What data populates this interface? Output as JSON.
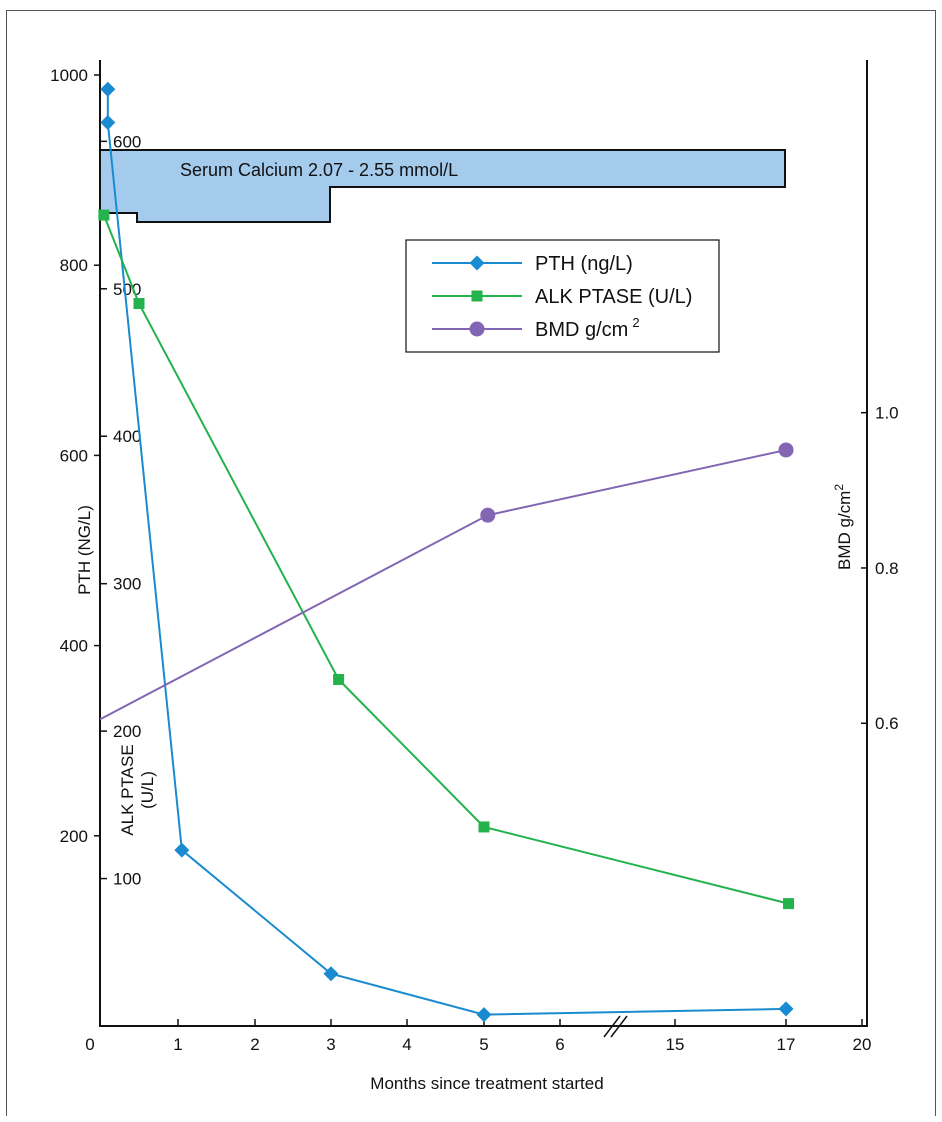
{
  "chart_data": {
    "type": "line",
    "xlabel": "Months since treatment started",
    "x_ticks": [
      "0",
      "1",
      "2",
      "3",
      "4",
      "5",
      "6",
      "15",
      "17",
      "20"
    ],
    "axes": {
      "pth": {
        "label": "PTH (NG/L)",
        "ticks": [
          200,
          400,
          600,
          800,
          1000
        ],
        "range": [
          0,
          1000
        ]
      },
      "alk": {
        "label_line1": "ALK PTASE",
        "label_line2": "(U/L)",
        "ticks": [
          100,
          200,
          300,
          400,
          500,
          600
        ],
        "range": [
          0,
          645
        ]
      },
      "bmd": {
        "label": "BMD g/cm",
        "label_sup": "2",
        "ticks": [
          "0.6",
          "0.8",
          "1.0"
        ],
        "range": [
          0.21,
          1.435
        ]
      }
    },
    "calcium_band": {
      "label": "Serum Calcium 2.07 - 2.55 mmol/L",
      "color": "#a4cbec"
    },
    "legend": [
      {
        "name": "PTH (ng/L)",
        "marker": "diamond",
        "color": "#1a8bd0"
      },
      {
        "name": "ALK PTASE (U/L)",
        "marker": "square",
        "color": "#23b24b"
      },
      {
        "name": "BMD g/cm",
        "sup": "2",
        "marker": "circle",
        "color": "#8266b3"
      }
    ],
    "series": [
      {
        "key": "pth",
        "axis": "pth",
        "marker": "diamond",
        "color": "#1a8bd0",
        "points": [
          [
            0.1,
            985
          ],
          [
            0.1,
            950
          ],
          [
            1.05,
            185
          ],
          [
            3.0,
            55
          ],
          [
            5.0,
            12
          ],
          [
            17.0,
            18
          ]
        ]
      },
      {
        "key": "alk",
        "axis": "alk",
        "marker": "square",
        "color": "#23b24b",
        "points": [
          [
            0.05,
            550
          ],
          [
            0.5,
            490
          ],
          [
            3.1,
            235
          ],
          [
            5.0,
            135
          ],
          [
            17.1,
            83
          ]
        ]
      },
      {
        "key": "bmd",
        "axis": "bmd",
        "marker": "circle",
        "color": "#8266b3",
        "points": [
          [
            0.0,
            0.605
          ],
          [
            5.05,
            0.868
          ],
          [
            17.0,
            0.952
          ]
        ]
      }
    ]
  }
}
